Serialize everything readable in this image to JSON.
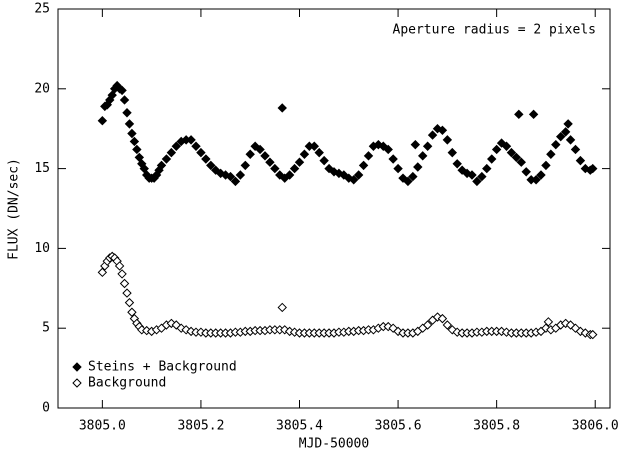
{
  "chart_data": {
    "type": "scatter",
    "annotation": "Aperture radius = 2 pixels",
    "x_label": "MJD-50000",
    "y_label": "FLUX (DN/sec)",
    "xlim": [
      3804.91,
      3806.03
    ],
    "ylim": [
      0,
      25
    ],
    "xticks": [
      {
        "value": 3805.0,
        "label": "3805.0"
      },
      {
        "value": 3805.2,
        "label": "3805.2"
      },
      {
        "value": 3805.4,
        "label": "3805.4"
      },
      {
        "value": 3805.6,
        "label": "3805.6"
      },
      {
        "value": 3805.8,
        "label": "3805.8"
      },
      {
        "value": 3806.0,
        "label": "3806.0"
      }
    ],
    "yticks": [
      0,
      5,
      10,
      15,
      20,
      25
    ],
    "legend": "lower left",
    "series": [
      {
        "name": "Steins + Background",
        "marker": "filled-diamond",
        "color": "#000000",
        "x": [
          3805.0,
          3805.005,
          3805.01,
          3805.015,
          3805.02,
          3805.025,
          3805.03,
          3805.035,
          3805.04,
          3805.045,
          3805.05,
          3805.055,
          3805.06,
          3805.065,
          3805.07,
          3805.075,
          3805.08,
          3805.085,
          3805.09,
          3805.095,
          3805.1,
          3805.105,
          3805.11,
          3805.115,
          3805.12,
          3805.13,
          3805.14,
          3805.15,
          3805.16,
          3805.17,
          3805.18,
          3805.19,
          3805.2,
          3805.21,
          3805.22,
          3805.23,
          3805.24,
          3805.25,
          3805.26,
          3805.27,
          3805.28,
          3805.29,
          3805.3,
          3805.31,
          3805.32,
          3805.33,
          3805.34,
          3805.35,
          3805.36,
          3805.365,
          3805.37,
          3805.38,
          3805.39,
          3805.4,
          3805.41,
          3805.42,
          3805.43,
          3805.44,
          3805.45,
          3805.46,
          3805.47,
          3805.48,
          3805.49,
          3805.5,
          3805.51,
          3805.52,
          3805.53,
          3805.54,
          3805.55,
          3805.56,
          3805.57,
          3805.58,
          3805.59,
          3805.6,
          3805.61,
          3805.62,
          3805.63,
          3805.635,
          3805.64,
          3805.65,
          3805.66,
          3805.67,
          3805.68,
          3805.69,
          3805.7,
          3805.71,
          3805.72,
          3805.73,
          3805.74,
          3805.75,
          3805.76,
          3805.77,
          3805.78,
          3805.79,
          3805.8,
          3805.81,
          3805.82,
          3805.83,
          3805.84,
          3805.845,
          3805.85,
          3805.86,
          3805.87,
          3805.875,
          3805.88,
          3805.89,
          3805.9,
          3805.91,
          3805.92,
          3805.93,
          3805.94,
          3805.945,
          3805.95,
          3805.96,
          3805.97,
          3805.98,
          3805.99,
          3805.995
        ],
        "values": [
          18.0,
          18.9,
          19.0,
          19.3,
          19.6,
          20.0,
          20.2,
          20.0,
          19.9,
          19.3,
          18.5,
          17.8,
          17.2,
          16.7,
          16.2,
          15.7,
          15.3,
          15.0,
          14.6,
          14.4,
          14.4,
          14.4,
          14.6,
          14.9,
          15.2,
          15.6,
          16.0,
          16.4,
          16.7,
          16.8,
          16.8,
          16.4,
          16.0,
          15.6,
          15.2,
          14.9,
          14.7,
          14.6,
          14.5,
          14.2,
          14.6,
          15.2,
          15.9,
          16.4,
          16.2,
          15.8,
          15.4,
          15.0,
          14.6,
          18.8,
          14.4,
          14.6,
          15.0,
          15.4,
          15.9,
          16.4,
          16.4,
          16.0,
          15.5,
          15.0,
          14.8,
          14.7,
          14.6,
          14.4,
          14.3,
          14.6,
          15.2,
          15.8,
          16.4,
          16.5,
          16.4,
          16.2,
          15.6,
          15.0,
          14.4,
          14.2,
          14.5,
          16.5,
          15.1,
          15.8,
          16.4,
          17.1,
          17.5,
          17.4,
          16.8,
          16.0,
          15.3,
          14.9,
          14.7,
          14.6,
          14.2,
          14.5,
          15.0,
          15.6,
          16.2,
          16.6,
          16.4,
          16.0,
          15.7,
          18.4,
          15.4,
          14.8,
          14.3,
          18.4,
          14.3,
          14.6,
          15.2,
          15.9,
          16.5,
          17.0,
          17.3,
          17.8,
          16.8,
          16.2,
          15.5,
          15.0,
          14.9,
          15.0
        ]
      },
      {
        "name": "Background",
        "marker": "open-diamond",
        "color": "#000000",
        "x": [
          3805.0,
          3805.005,
          3805.01,
          3805.015,
          3805.02,
          3805.025,
          3805.03,
          3805.035,
          3805.04,
          3805.045,
          3805.05,
          3805.055,
          3805.06,
          3805.065,
          3805.07,
          3805.075,
          3805.08,
          3805.09,
          3805.1,
          3805.11,
          3805.12,
          3805.13,
          3805.14,
          3805.15,
          3805.16,
          3805.17,
          3805.18,
          3805.19,
          3805.2,
          3805.21,
          3805.22,
          3805.23,
          3805.24,
          3805.25,
          3805.26,
          3805.27,
          3805.28,
          3805.29,
          3805.3,
          3805.31,
          3805.32,
          3805.33,
          3805.34,
          3805.35,
          3805.36,
          3805.365,
          3805.37,
          3805.38,
          3805.39,
          3805.4,
          3805.41,
          3805.42,
          3805.43,
          3805.44,
          3805.45,
          3805.46,
          3805.47,
          3805.48,
          3805.49,
          3805.5,
          3805.51,
          3805.52,
          3805.53,
          3805.54,
          3805.55,
          3805.56,
          3805.57,
          3805.58,
          3805.59,
          3805.6,
          3805.61,
          3805.62,
          3805.63,
          3805.64,
          3805.65,
          3805.66,
          3805.67,
          3805.68,
          3805.69,
          3805.7,
          3805.71,
          3805.72,
          3805.73,
          3805.74,
          3805.75,
          3805.76,
          3805.77,
          3805.78,
          3805.79,
          3805.8,
          3805.81,
          3805.82,
          3805.83,
          3805.84,
          3805.85,
          3805.86,
          3805.87,
          3805.88,
          3805.89,
          3805.9,
          3805.905,
          3805.91,
          3805.92,
          3805.93,
          3805.94,
          3805.95,
          3805.96,
          3805.97,
          3805.98,
          3805.99,
          3805.995
        ],
        "values": [
          8.5,
          8.9,
          9.2,
          9.4,
          9.5,
          9.4,
          9.2,
          8.9,
          8.4,
          7.8,
          7.2,
          6.6,
          6.0,
          5.6,
          5.3,
          5.1,
          4.9,
          4.85,
          4.8,
          4.9,
          5.0,
          5.2,
          5.3,
          5.2,
          5.0,
          4.9,
          4.8,
          4.75,
          4.75,
          4.7,
          4.7,
          4.7,
          4.7,
          4.7,
          4.7,
          4.75,
          4.75,
          4.8,
          4.8,
          4.85,
          4.85,
          4.85,
          4.9,
          4.9,
          4.9,
          6.3,
          4.9,
          4.8,
          4.75,
          4.7,
          4.7,
          4.7,
          4.7,
          4.7,
          4.7,
          4.7,
          4.7,
          4.75,
          4.75,
          4.8,
          4.8,
          4.85,
          4.85,
          4.9,
          4.9,
          5.0,
          5.1,
          5.1,
          5.0,
          4.8,
          4.7,
          4.7,
          4.7,
          4.8,
          5.0,
          5.2,
          5.5,
          5.7,
          5.6,
          5.2,
          4.9,
          4.75,
          4.7,
          4.7,
          4.7,
          4.75,
          4.75,
          4.8,
          4.8,
          4.8,
          4.8,
          4.75,
          4.7,
          4.7,
          4.7,
          4.7,
          4.7,
          4.75,
          4.8,
          5.0,
          5.4,
          4.9,
          5.0,
          5.2,
          5.3,
          5.2,
          5.0,
          4.8,
          4.7,
          4.6,
          4.6
        ]
      }
    ]
  }
}
